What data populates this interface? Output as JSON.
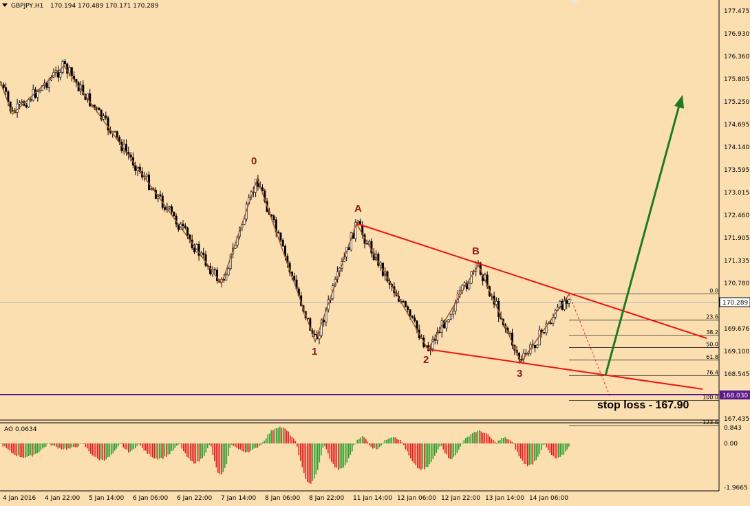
{
  "header": {
    "symbol": "GBPJPY,H1",
    "ohlc": "170.194 170.489 170.171 170.289"
  },
  "price_axis": {
    "labels": [
      "177.475",
      "176.930",
      "176.360",
      "175.805",
      "175.250",
      "174.695",
      "174.140",
      "173.595",
      "173.015",
      "172.460",
      "171.905",
      "171.335",
      "170.780",
      "170.289",
      "169.676",
      "169.100",
      "168.545",
      "168.030",
      "167.435"
    ],
    "current_price": "170.289",
    "support_price": "168.030"
  },
  "time_axis": {
    "labels": [
      "4 Jan 2016",
      "4 Jan 22:00",
      "5 Jan 14:00",
      "6 Jan 06:00",
      "6 Jan 22:00",
      "7 Jan 14:00",
      "8 Jan 06:00",
      "8 Jan 22:00",
      "11 Jan 14:00",
      "12 Jan 06:00",
      "12 Jan 22:00",
      "13 Jan 14:00",
      "14 Jan 06:00"
    ]
  },
  "waves": {
    "labels": [
      "0",
      "1",
      "A",
      "2",
      "B",
      "3"
    ]
  },
  "fibonacci": {
    "levels": [
      "0.0",
      "23.6",
      "38.2",
      "50.0",
      "61.8",
      "76.4",
      "100.0",
      "123.6"
    ]
  },
  "annotation": {
    "stop_loss": "stop loss - 167.90"
  },
  "indicator": {
    "label": "AO 0.0634",
    "axis_labels": [
      "0.843",
      "0.00",
      "-1.9665"
    ]
  },
  "colors": {
    "background": "#fbdfb1",
    "trend_lines": "#ee1111",
    "zigzag": "#a0522d",
    "arrow": "#1f7a1f",
    "support_line": "#5b1a8a",
    "ao_up": "#2e9e2e",
    "ao_down": "#e02020",
    "wave_labels": "#8b1a1a"
  },
  "chart_data": {
    "type": "candlestick",
    "symbol": "GBPJPY",
    "timeframe": "H1",
    "ylim": [
      167.2,
      177.8
    ],
    "ohlc": {
      "open": 170.194,
      "high": 170.489,
      "low": 170.171,
      "close": 170.289
    },
    "wave_points": [
      {
        "label": "0",
        "price": 173.31
      },
      {
        "label": "1",
        "price": 169.46
      },
      {
        "label": "A",
        "price": 172.23
      },
      {
        "label": "2",
        "price": 169.15
      },
      {
        "label": "B",
        "price": 171.28
      },
      {
        "label": "3",
        "price": 168.92
      }
    ],
    "fib_levels": [
      {
        "level": "0.0",
        "price": 170.49
      },
      {
        "level": "23.6",
        "price": 169.85
      },
      {
        "level": "38.2",
        "price": 169.47
      },
      {
        "level": "50.0",
        "price": 169.17
      },
      {
        "level": "61.8",
        "price": 168.86
      },
      {
        "level": "76.4",
        "price": 168.48
      },
      {
        "level": "100.0",
        "price": 167.87
      },
      {
        "level": "123.6",
        "price": 167.25
      }
    ],
    "support_level": 168.03,
    "stop_loss": 167.9
  }
}
